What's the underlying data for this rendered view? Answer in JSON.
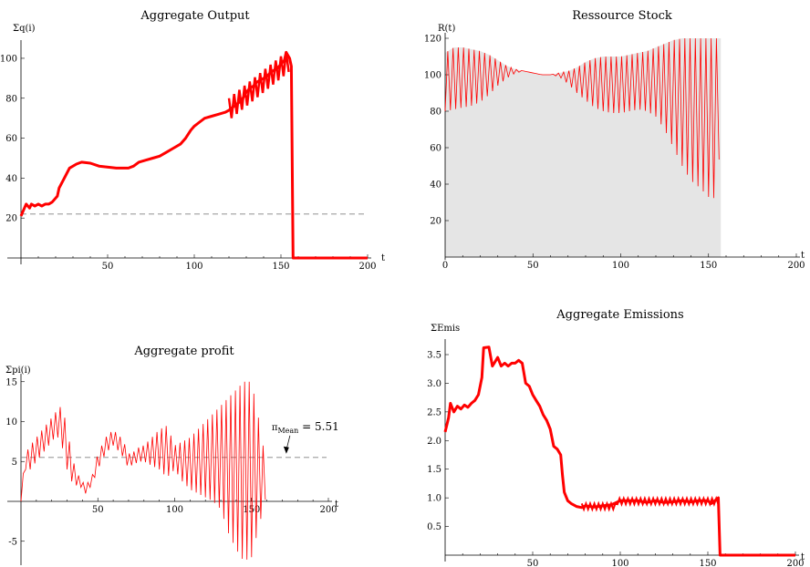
{
  "chart_data": [
    {
      "id": "output",
      "type": "line",
      "title": "Aggregate Output",
      "xlabel": "t",
      "ylabel": "Σq(i)",
      "xlim": [
        0,
        200
      ],
      "ylim": [
        0,
        105
      ],
      "xticks": [
        50,
        100,
        150,
        200
      ],
      "yticks": [
        20,
        40,
        60,
        80,
        100
      ],
      "color": "#ff0000",
      "reference_line": {
        "y": 22,
        "style": "dashed",
        "color": "#808080"
      },
      "series": [
        {
          "values": [
            [
              0,
              21
            ],
            [
              2,
              25
            ],
            [
              3,
              27
            ],
            [
              5,
              25
            ],
            [
              6,
              27
            ],
            [
              8,
              26
            ],
            [
              10,
              27
            ],
            [
              12,
              26
            ],
            [
              14,
              27
            ],
            [
              16,
              27
            ],
            [
              18,
              28
            ],
            [
              20,
              30
            ],
            [
              21,
              31
            ],
            [
              22,
              35
            ],
            [
              25,
              40
            ],
            [
              28,
              45
            ],
            [
              32,
              47
            ],
            [
              35,
              48
            ],
            [
              40,
              47.5
            ],
            [
              45,
              46
            ],
            [
              55,
              45
            ],
            [
              62,
              45
            ],
            [
              65,
              46
            ],
            [
              68,
              48
            ],
            [
              72,
              49
            ],
            [
              76,
              50
            ],
            [
              80,
              51
            ],
            [
              84,
              53
            ],
            [
              88,
              55
            ],
            [
              92,
              57
            ],
            [
              95,
              60
            ],
            [
              98,
              64
            ],
            [
              100,
              66
            ],
            [
              103,
              68
            ],
            [
              106,
              70
            ],
            [
              110,
              71
            ],
            [
              114,
              72
            ],
            [
              118,
              73
            ],
            [
              120,
              74
            ],
            [
              123,
              76
            ],
            [
              126,
              78
            ],
            [
              128,
              80
            ],
            [
              130,
              83
            ],
            [
              132,
              85
            ],
            [
              134,
              86
            ],
            [
              136,
              88
            ],
            [
              138,
              89
            ],
            [
              140,
              90
            ],
            [
              142,
              91
            ],
            [
              144,
              93
            ],
            [
              146,
              94
            ],
            [
              148,
              95
            ],
            [
              150,
              97
            ],
            [
              152,
              99
            ],
            [
              153,
              103
            ],
            [
              155,
              100
            ],
            [
              156,
              96
            ],
            [
              157,
              0
            ],
            [
              158,
              0
            ],
            [
              200,
              0
            ]
          ]
        }
      ]
    },
    {
      "id": "resource",
      "type": "area",
      "title": "Ressource Stock",
      "xlabel": "t",
      "ylabel": "R(t)",
      "xlim": [
        0,
        200
      ],
      "ylim": [
        0,
        120
      ],
      "xticks": [
        0,
        50,
        100,
        150,
        200
      ],
      "yticks": [
        20,
        40,
        60,
        80,
        100,
        120
      ],
      "color": "#ff0000",
      "fill": "#e5e5e5",
      "envelope": {
        "t": [
          0,
          5,
          10,
          15,
          20,
          25,
          30,
          35,
          40,
          45,
          50,
          55,
          60,
          65,
          70,
          75,
          80,
          85,
          90,
          95,
          100,
          105,
          110,
          115,
          120,
          125,
          130,
          135,
          140,
          145,
          150,
          155,
          157
        ],
        "upper": [
          112,
          115,
          115,
          114,
          113,
          111,
          108,
          105,
          103,
          102,
          101,
          100,
          100,
          101,
          102,
          104,
          107,
          109,
          110,
          110,
          110,
          111,
          112,
          113,
          115,
          117,
          119,
          120,
          120,
          120,
          120,
          120,
          120
        ],
        "lower": [
          80,
          81,
          82,
          83,
          85,
          89,
          94,
          98,
          101,
          102,
          101,
          100,
          100,
          99,
          95,
          90,
          86,
          82,
          80,
          79,
          79,
          80,
          81,
          80,
          77,
          70,
          60,
          50,
          42,
          38,
          33,
          32,
          75
        ]
      },
      "cutoff_t": 157
    },
    {
      "id": "profit",
      "type": "line",
      "title": "Aggregate profit",
      "xlabel": "t",
      "ylabel": "Σpi(i)",
      "xlim": [
        0,
        200
      ],
      "ylim": [
        -8,
        16
      ],
      "xticks": [
        50,
        100,
        150,
        200
      ],
      "yticks": [
        -5,
        5,
        10,
        15
      ],
      "color": "#ff0000",
      "reference_line": {
        "y": 5.51,
        "style": "dashed",
        "color": "#808080"
      },
      "annotation": {
        "text_main": "π",
        "text_sub": "Mean",
        "text_value": " = 5.51",
        "x": 175,
        "y": 5.51
      },
      "envelope": {
        "t": [
          0,
          3,
          6,
          10,
          14,
          18,
          22,
          25,
          28,
          30,
          34,
          38,
          42,
          46,
          50,
          55,
          60,
          65,
          68,
          70,
          72,
          75,
          78,
          80,
          85,
          90,
          95,
          100,
          105,
          110,
          115,
          120,
          125,
          130,
          135,
          140,
          145,
          150,
          155,
          160
        ],
        "upper": [
          1,
          6,
          7,
          8,
          9,
          10,
          11,
          12,
          11,
          9,
          5,
          3,
          2,
          3,
          6,
          8,
          9,
          8,
          7,
          6,
          6,
          6.5,
          7,
          7,
          8,
          9,
          9.5,
          7,
          7.5,
          8,
          9,
          10,
          11,
          12,
          13,
          14,
          15,
          15,
          10,
          4
        ],
        "lower": [
          0,
          4,
          4,
          5,
          6,
          7,
          8,
          8,
          6,
          4,
          2,
          2,
          1,
          2,
          4,
          6,
          7,
          6,
          5,
          4,
          4.5,
          4.8,
          5,
          5,
          4.5,
          4,
          3,
          4,
          2.5,
          1.5,
          1,
          0.5,
          0,
          -1,
          -4,
          -6,
          -7.5,
          -7,
          -3,
          1
        ]
      }
    },
    {
      "id": "emissions",
      "type": "line",
      "title": "Aggregate Emissions",
      "xlabel": "t",
      "ylabel": "ΣEmis",
      "xlim": [
        0,
        200
      ],
      "ylim": [
        0,
        3.75
      ],
      "xticks": [
        50,
        100,
        150,
        200
      ],
      "yticks": [
        0.5,
        1.0,
        1.5,
        2.0,
        2.5,
        3.0,
        3.5
      ],
      "ytick_labels": [
        "0.5",
        "1.0",
        "1.5",
        "2.0",
        "2.5",
        "3.0",
        "3.5"
      ],
      "color": "#ff0000",
      "series": [
        {
          "values": [
            [
              0,
              2.15
            ],
            [
              2,
              2.4
            ],
            [
              3,
              2.65
            ],
            [
              5,
              2.5
            ],
            [
              7,
              2.6
            ],
            [
              9,
              2.55
            ],
            [
              11,
              2.62
            ],
            [
              13,
              2.58
            ],
            [
              15,
              2.65
            ],
            [
              17,
              2.7
            ],
            [
              19,
              2.8
            ],
            [
              20,
              2.95
            ],
            [
              21,
              3.1
            ],
            [
              22,
              3.62
            ],
            [
              25,
              3.63
            ],
            [
              27,
              3.3
            ],
            [
              28,
              3.35
            ],
            [
              30,
              3.45
            ],
            [
              32,
              3.3
            ],
            [
              34,
              3.35
            ],
            [
              36,
              3.3
            ],
            [
              38,
              3.35
            ],
            [
              40,
              3.35
            ],
            [
              42,
              3.4
            ],
            [
              44,
              3.35
            ],
            [
              46,
              3.0
            ],
            [
              48,
              2.95
            ],
            [
              50,
              2.8
            ],
            [
              52,
              2.7
            ],
            [
              54,
              2.6
            ],
            [
              56,
              2.45
            ],
            [
              58,
              2.35
            ],
            [
              60,
              2.2
            ],
            [
              62,
              1.9
            ],
            [
              64,
              1.85
            ],
            [
              66,
              1.75
            ],
            [
              67,
              1.4
            ],
            [
              68,
              1.1
            ],
            [
              70,
              0.95
            ],
            [
              72,
              0.9
            ],
            [
              75,
              0.85
            ],
            [
              78,
              0.83
            ],
            [
              80,
              0.86
            ],
            [
              85,
              0.84
            ],
            [
              90,
              0.86
            ],
            [
              95,
              0.88
            ],
            [
              100,
              0.95
            ],
            [
              105,
              0.95
            ],
            [
              110,
              0.95
            ],
            [
              115,
              0.92
            ],
            [
              120,
              0.95
            ],
            [
              125,
              0.92
            ],
            [
              130,
              0.93
            ],
            [
              135,
              0.95
            ],
            [
              140,
              0.93
            ],
            [
              145,
              0.95
            ],
            [
              150,
              0.95
            ],
            [
              152,
              0.9
            ],
            [
              154,
              0.95
            ],
            [
              156,
              1.0
            ],
            [
              157,
              0.0
            ],
            [
              158,
              0.0
            ],
            [
              200,
              0.0
            ]
          ]
        }
      ]
    }
  ]
}
